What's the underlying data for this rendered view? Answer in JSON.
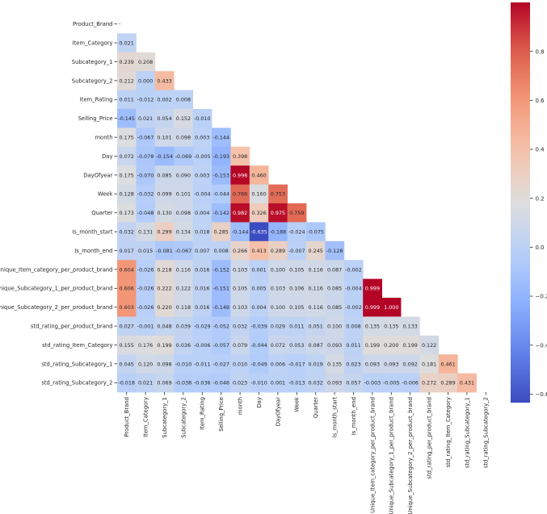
{
  "chart_data": {
    "type": "heatmap",
    "title": "",
    "xlabel": "",
    "ylabel": "",
    "variables": [
      "Product_Brand",
      "Item_Category",
      "Subcategory_1",
      "Subcategory_2",
      "Item_Rating",
      "Selling_Price",
      "month",
      "Day",
      "DayOfyear",
      "Week",
      "Quarter",
      "Is_month_start",
      "Is_month_end",
      "Unique_Item_category_per_product_brand",
      "Unique_Subcategory_1_per_product_brand",
      "Unique_Subcategory_2_per_product_brand",
      "std_rating_per_product_brand",
      "std_rating_Item_Category",
      "std_rating_Subcategory_1",
      "std_rating_Subcategory_2"
    ],
    "lower_triangle_values": [
      [],
      [
        "0.021"
      ],
      [
        "0.239",
        "0.208"
      ],
      [
        "0.212",
        "0.000",
        "0.433"
      ],
      [
        "0.011",
        "-0.012",
        "0.002",
        "0.008"
      ],
      [
        "-0.145",
        "0.021",
        "0.054",
        "0.152",
        "-0.010"
      ],
      [
        "0.175",
        "-0.067",
        "0.101",
        "0.098",
        "0.003",
        "-0.144"
      ],
      [
        "0.072",
        "-0.078",
        "-0.154",
        "-0.069",
        "-0.005",
        "-0.193",
        "0.398"
      ],
      [
        "0.175",
        "-0.070",
        "0.085",
        "0.090",
        "0.003",
        "-0.153",
        "0.998",
        "0.460"
      ],
      [
        "0.128",
        "-0.032",
        "0.099",
        "0.101",
        "-0.004",
        "-0.044",
        "0.766",
        "0.160",
        "0.753"
      ],
      [
        "0.173",
        "-0.048",
        "0.130",
        "0.098",
        "0.004",
        "-0.142",
        "0.982",
        "0.326",
        "0.975",
        "0.759"
      ],
      [
        "0.032",
        "0.131",
        "0.299",
        "0.134",
        "0.018",
        "0.285",
        "-0.144",
        "-0.635",
        "-0.188",
        "-0.024",
        "-0.075"
      ],
      [
        "0.017",
        "0.015",
        "-0.081",
        "-0.067",
        "0.007",
        "0.008",
        "0.266",
        "0.413",
        "0.289",
        "-0.007",
        "0.245",
        "-0.128"
      ],
      [
        "0.604",
        "-0.026",
        "0.218",
        "0.116",
        "0.016",
        "-0.152",
        "0.103",
        "0.001",
        "0.100",
        "0.105",
        "0.116",
        "0.087",
        "-0.002"
      ],
      [
        "0.606",
        "-0.026",
        "0.222",
        "0.122",
        "0.016",
        "-0.151",
        "0.105",
        "0.005",
        "0.103",
        "0.106",
        "0.116",
        "0.085",
        "-0.004",
        "0.999"
      ],
      [
        "0.603",
        "-0.026",
        "0.220",
        "0.118",
        "0.016",
        "-0.149",
        "0.103",
        "0.004",
        "0.100",
        "0.105",
        "0.116",
        "0.085",
        "-0.002",
        "0.999",
        "1.000"
      ],
      [
        "0.027",
        "-0.001",
        "0.048",
        "0.039",
        "-0.029",
        "-0.052",
        "0.032",
        "-0.039",
        "0.029",
        "0.011",
        "0.051",
        "0.100",
        "0.008",
        "0.135",
        "0.135",
        "0.133"
      ],
      [
        "0.155",
        "0.176",
        "0.199",
        "0.036",
        "-0.006",
        "-0.057",
        "0.079",
        "-0.044",
        "0.072",
        "0.053",
        "0.087",
        "0.093",
        "0.011",
        "0.199",
        "0.200",
        "0.199",
        "0.122"
      ],
      [
        "0.045",
        "0.120",
        "0.098",
        "-0.010",
        "-0.011",
        "-0.027",
        "0.010",
        "-0.049",
        "0.006",
        "-0.017",
        "0.019",
        "0.135",
        "0.023",
        "0.093",
        "0.093",
        "0.092",
        "0.181",
        "0.461"
      ],
      [
        "-0.018",
        "0.021",
        "0.069",
        "-0.038",
        "-0.036",
        "-0.046",
        "0.023",
        "-0.010",
        "0.001",
        "-0.013",
        "0.032",
        "0.093",
        "0.057",
        "-0.003",
        "-0.005",
        "-0.006",
        "0.272",
        "0.289",
        "0.431"
      ]
    ],
    "mask": "upper_triangle",
    "colormap": "coolwarm",
    "vmin": -0.635,
    "vmax": 1.0,
    "colorbar_ticks": [
      "0.8",
      "0.6",
      "0.4",
      "0.2",
      "0.0",
      "−0.2",
      "−0.4",
      "−0.6"
    ],
    "diagonal_row0_label": "-"
  }
}
